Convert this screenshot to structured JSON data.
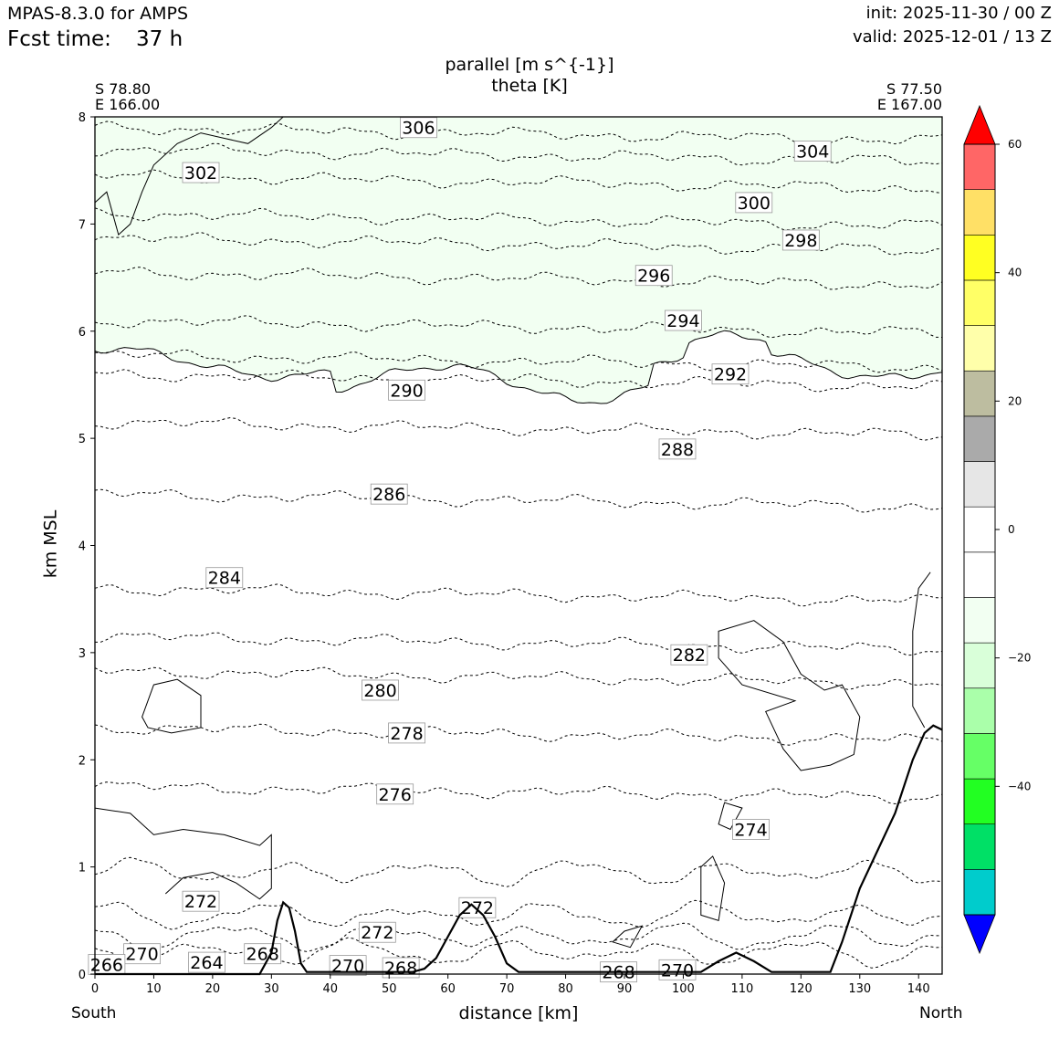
{
  "header": {
    "model": "MPAS-8.3.0 for AMPS",
    "fcst_label": "Fcst time:",
    "fcst_value": "37 h",
    "init": "init: 2025-11-30 / 00 Z",
    "valid": "valid: 2025-12-01 / 13 Z"
  },
  "corners": {
    "left_lat": "S 78.80",
    "left_lon": "E 166.00",
    "right_lat": "S 77.50",
    "right_lon": "E 167.00"
  },
  "directions": {
    "left": "South",
    "right": "North"
  },
  "chart_data": {
    "type": "contour",
    "title": "parallel [m s^{-1}]",
    "subtitle": "theta [K]",
    "xlabel": "distance [km]",
    "ylabel": "km MSL",
    "xlim": [
      0,
      144
    ],
    "ylim": [
      0,
      8
    ],
    "xticks": [
      0,
      10,
      20,
      30,
      40,
      50,
      60,
      70,
      80,
      90,
      100,
      110,
      120,
      130,
      140
    ],
    "yticks": [
      0,
      1,
      2,
      3,
      4,
      5,
      6,
      7,
      8
    ],
    "theta_contours": [
      {
        "value": 276,
        "y": 1.75,
        "label_x": 51,
        "label_y": 1.68
      },
      {
        "value": 278,
        "y": 2.3,
        "label_x": 53,
        "label_y": 2.25
      },
      {
        "value": 280,
        "y": 2.83,
        "label_x": 48.5,
        "label_y": 2.65
      },
      {
        "value": 282,
        "y": 3.15,
        "label_x": 101,
        "label_y": 2.98
      },
      {
        "value": 284,
        "y": 3.6,
        "label_x": 22,
        "label_y": 3.7
      },
      {
        "value": 286,
        "y": 4.48,
        "label_x": 50,
        "label_y": 4.48
      },
      {
        "value": 288,
        "y": 5.15,
        "label_x": 99,
        "label_y": 4.9
      },
      {
        "value": 290,
        "y": 5.6,
        "label_x": 53,
        "label_y": 5.45
      },
      {
        "value": 292,
        "y": 5.78,
        "label_x": 108,
        "label_y": 5.6
      },
      {
        "value": 294,
        "y": 6.1,
        "label_x": 100,
        "label_y": 6.1
      },
      {
        "value": 296,
        "y": 6.55,
        "label_x": 95,
        "label_y": 6.52
      },
      {
        "value": 298,
        "y": 6.87,
        "label_x": 120,
        "label_y": 6.85
      },
      {
        "value": 300,
        "y": 7.1,
        "label_x": 112,
        "label_y": 7.2
      },
      {
        "value": 302,
        "y": 7.45,
        "label_x": 18,
        "label_y": 7.48
      },
      {
        "value": 304,
        "y": 7.7,
        "label_x": 122,
        "label_y": 7.68
      },
      {
        "value": 306,
        "y": 7.9,
        "label_x": 55,
        "label_y": 7.9
      }
    ],
    "low_labels": [
      {
        "value": 274,
        "x": 111.5,
        "y": 1.35
      },
      {
        "value": 272,
        "x": 18,
        "y": 0.68
      },
      {
        "value": 272,
        "x": 48,
        "y": 0.39
      },
      {
        "value": 272,
        "x": 65,
        "y": 0.62
      },
      {
        "value": 270,
        "x": 8,
        "y": 0.19
      },
      {
        "value": 270,
        "x": 43,
        "y": 0.08
      },
      {
        "value": 270,
        "x": 99,
        "y": 0.04
      },
      {
        "value": 268,
        "x": 28.5,
        "y": 0.19
      },
      {
        "value": 268,
        "x": 52,
        "y": 0.06
      },
      {
        "value": 268,
        "x": 89,
        "y": 0.02
      },
      {
        "value": 266,
        "x": 2,
        "y": 0.09
      },
      {
        "value": 264,
        "x": 19,
        "y": 0.11
      }
    ],
    "terrain_km": [
      [
        0,
        0
      ],
      [
        28,
        0
      ],
      [
        30,
        0.2
      ],
      [
        31,
        0.5
      ],
      [
        32,
        0.67
      ],
      [
        33,
        0.62
      ],
      [
        34,
        0.4
      ],
      [
        35,
        0.1
      ],
      [
        36,
        0.02
      ],
      [
        54,
        0.02
      ],
      [
        56,
        0.05
      ],
      [
        58,
        0.15
      ],
      [
        60,
        0.35
      ],
      [
        62,
        0.55
      ],
      [
        64,
        0.65
      ],
      [
        66,
        0.55
      ],
      [
        68,
        0.35
      ],
      [
        70,
        0.1
      ],
      [
        72,
        0.02
      ],
      [
        103,
        0.02
      ],
      [
        106,
        0.12
      ],
      [
        109,
        0.2
      ],
      [
        112,
        0.12
      ],
      [
        115,
        0.02
      ],
      [
        125,
        0.02
      ],
      [
        127,
        0.3
      ],
      [
        130,
        0.8
      ],
      [
        133,
        1.15
      ],
      [
        136,
        1.5
      ],
      [
        139,
        2.0
      ],
      [
        141,
        2.25
      ],
      [
        142.5,
        2.32
      ],
      [
        144,
        2.28
      ]
    ],
    "colorbar": {
      "bounds": [
        -60,
        60
      ],
      "ticks": [
        -40,
        -20,
        0,
        20,
        40,
        60
      ],
      "tick_labels": [
        "−40",
        "−20",
        "0",
        "20",
        "40",
        "60"
      ],
      "colors": [
        "#0000ff",
        "#00cccc",
        "#00e066",
        "#22ff22",
        "#66ff66",
        "#aaffaa",
        "#d9ffd9",
        "#f2fff2",
        "#ffffff",
        "#ffffff",
        "#e6e6e6",
        "#aaaaaa",
        "#bdbda0",
        "#ffffaa",
        "#ffff66",
        "#ffff22",
        "#ffe066",
        "#ff6666",
        "#ff0000"
      ]
    },
    "fill_region": "parallel wind between -10 and -5 m/s (light green) above about 5.5 km"
  }
}
